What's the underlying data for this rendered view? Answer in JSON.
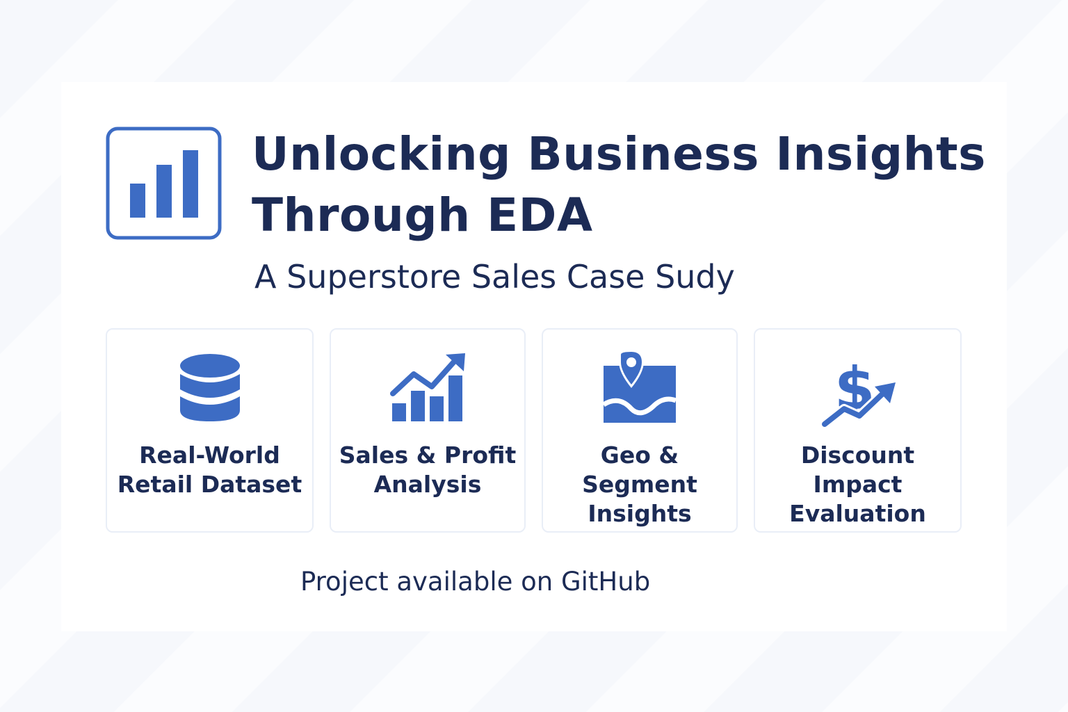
{
  "accent_color": "#3d6cc4",
  "text_color": "#1c2b55",
  "header": {
    "logo_icon": "bar-chart-icon",
    "title_line1": "Unlocking Business Insights",
    "title_line2": "Through EDA",
    "subtitle": "A Superstore Sales Case Sudy"
  },
  "features": [
    {
      "icon": "database-icon",
      "label_line1": "Real-World",
      "label_line2": "Retail Dataset",
      "label_line3": ""
    },
    {
      "icon": "trending-bar-chart-icon",
      "label_line1": "Sales & Profit",
      "label_line2": "Analysis",
      "label_line3": ""
    },
    {
      "icon": "map-pin-icon",
      "label_line1": "Geo & Segment",
      "label_line2": "Insights",
      "label_line3": ""
    },
    {
      "icon": "dollar-trend-icon",
      "label_line1": "Discount",
      "label_line2": "Impact",
      "label_line3": "Evaluation"
    }
  ],
  "footer": {
    "text": "Project available on GitHub"
  }
}
